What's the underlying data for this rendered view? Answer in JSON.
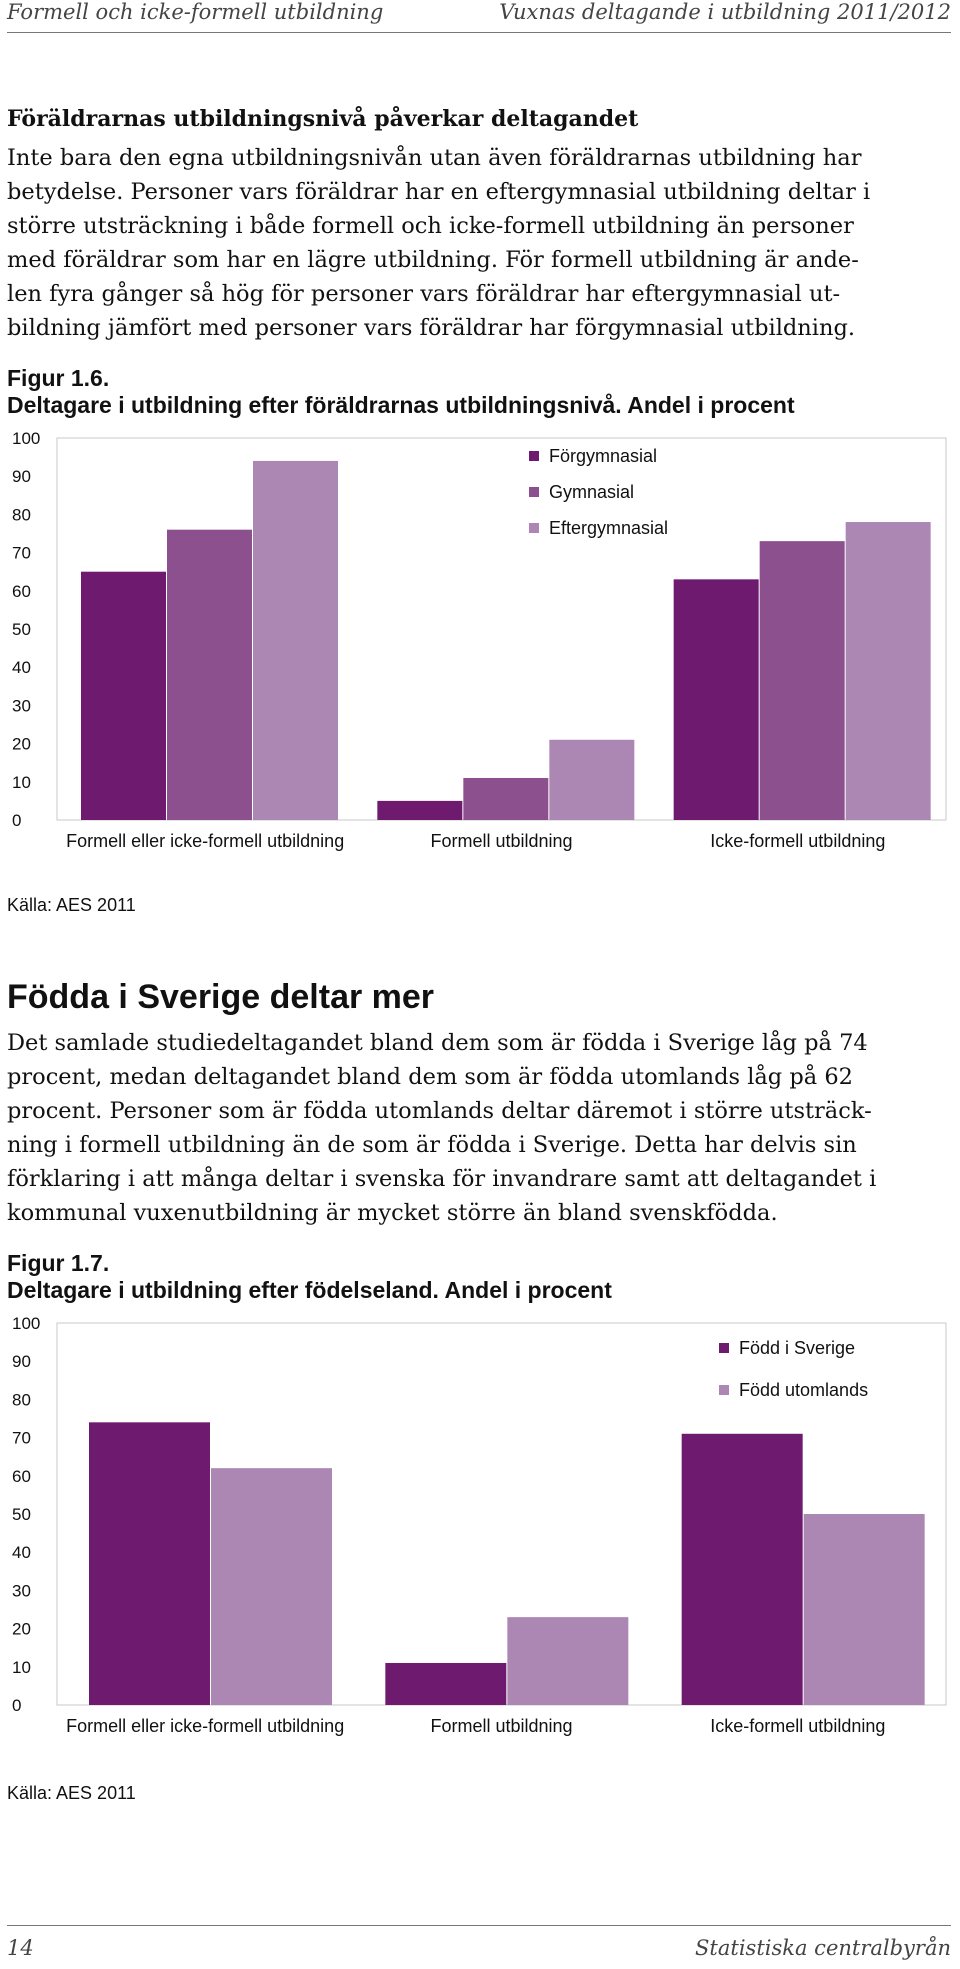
{
  "header": {
    "left": "Formell och icke-formell utbildning",
    "right": "Vuxnas deltagande i utbildning 2011/2012"
  },
  "section1": {
    "heading": "Föräldrarnas utbildningsnivå påverkar deltagandet",
    "lines": [
      "Inte bara den egna utbildningsnivån utan även föräldrarnas utbildning har",
      "betydelse. Personer vars föräldrar har en eftergymnasial utbildning deltar i",
      "större utsträckning i både formell och icke-formell utbildning än personer",
      "med föräldrar som har en lägre utbildning. För formell utbildning är ande-",
      "len fyra gånger så hög för personer vars föräldrar har eftergymnasial ut-",
      "bildning jämfört med personer vars föräldrar har förgymnasial utbildning."
    ]
  },
  "figure1": {
    "label": "Figur 1.6.",
    "title": "Deltagare i utbildning efter föräldrarnas utbildningsnivå. Andel i procent",
    "source": "Källa: AES 2011"
  },
  "section2": {
    "heading": "Födda i Sverige deltar mer",
    "lines": [
      "Det samlade studiedeltagandet bland dem som är födda i Sverige låg på 74",
      "procent, medan deltagandet bland dem som är födda utomlands låg på 62",
      "procent. Personer som är födda utomlands deltar däremot i större utsträck-",
      "ning i formell utbildning än de som är födda i Sverige. Detta har delvis sin",
      "förklaring i att många deltar i svenska för invandrare samt att deltagandet i",
      "kommunal vuxenutbildning är mycket större än bland svenskfödda."
    ]
  },
  "figure2": {
    "label": "Figur 1.7.",
    "title": "Deltagare i utbildning efter födelseland. Andel i procent",
    "source": "Källa: AES 2011"
  },
  "footer": {
    "page_number": "14",
    "publisher": "Statistiska centralbyrån"
  },
  "chart_data": [
    {
      "type": "bar",
      "categories": [
        "Formell eller icke-formell utbildning",
        "Formell utbildning",
        "Icke-formell utbildning"
      ],
      "series": [
        {
          "name": "Förgymnasial",
          "values": [
            65,
            5,
            63
          ],
          "color": "#6d1a6f"
        },
        {
          "name": "Gymnasial",
          "values": [
            76,
            11,
            73
          ],
          "color": "#8c508e"
        },
        {
          "name": "Eftergymnasial",
          "values": [
            94,
            21,
            78
          ],
          "color": "#ad87b4"
        }
      ],
      "ylim": [
        0,
        100
      ],
      "yticks": [
        "0",
        "10",
        "20",
        "30",
        "40",
        "50",
        "60",
        "70",
        "80",
        "90",
        "100"
      ],
      "legend_position": "top-right",
      "grid": false
    },
    {
      "type": "bar",
      "categories": [
        "Formell eller icke-formell utbildning",
        "Formell utbildning",
        "Icke-formell utbildning"
      ],
      "series": [
        {
          "name": "Född i Sverige",
          "values": [
            74,
            11,
            71
          ],
          "color": "#6d1a6f"
        },
        {
          "name": "Född utomlands",
          "values": [
            62,
            23,
            50
          ],
          "color": "#ad87b4"
        }
      ],
      "ylim": [
        0,
        100
      ],
      "yticks": [
        "0",
        "10",
        "20",
        "30",
        "40",
        "50",
        "60",
        "70",
        "80",
        "90",
        "100"
      ],
      "legend_position": "top-right",
      "grid": false
    }
  ]
}
